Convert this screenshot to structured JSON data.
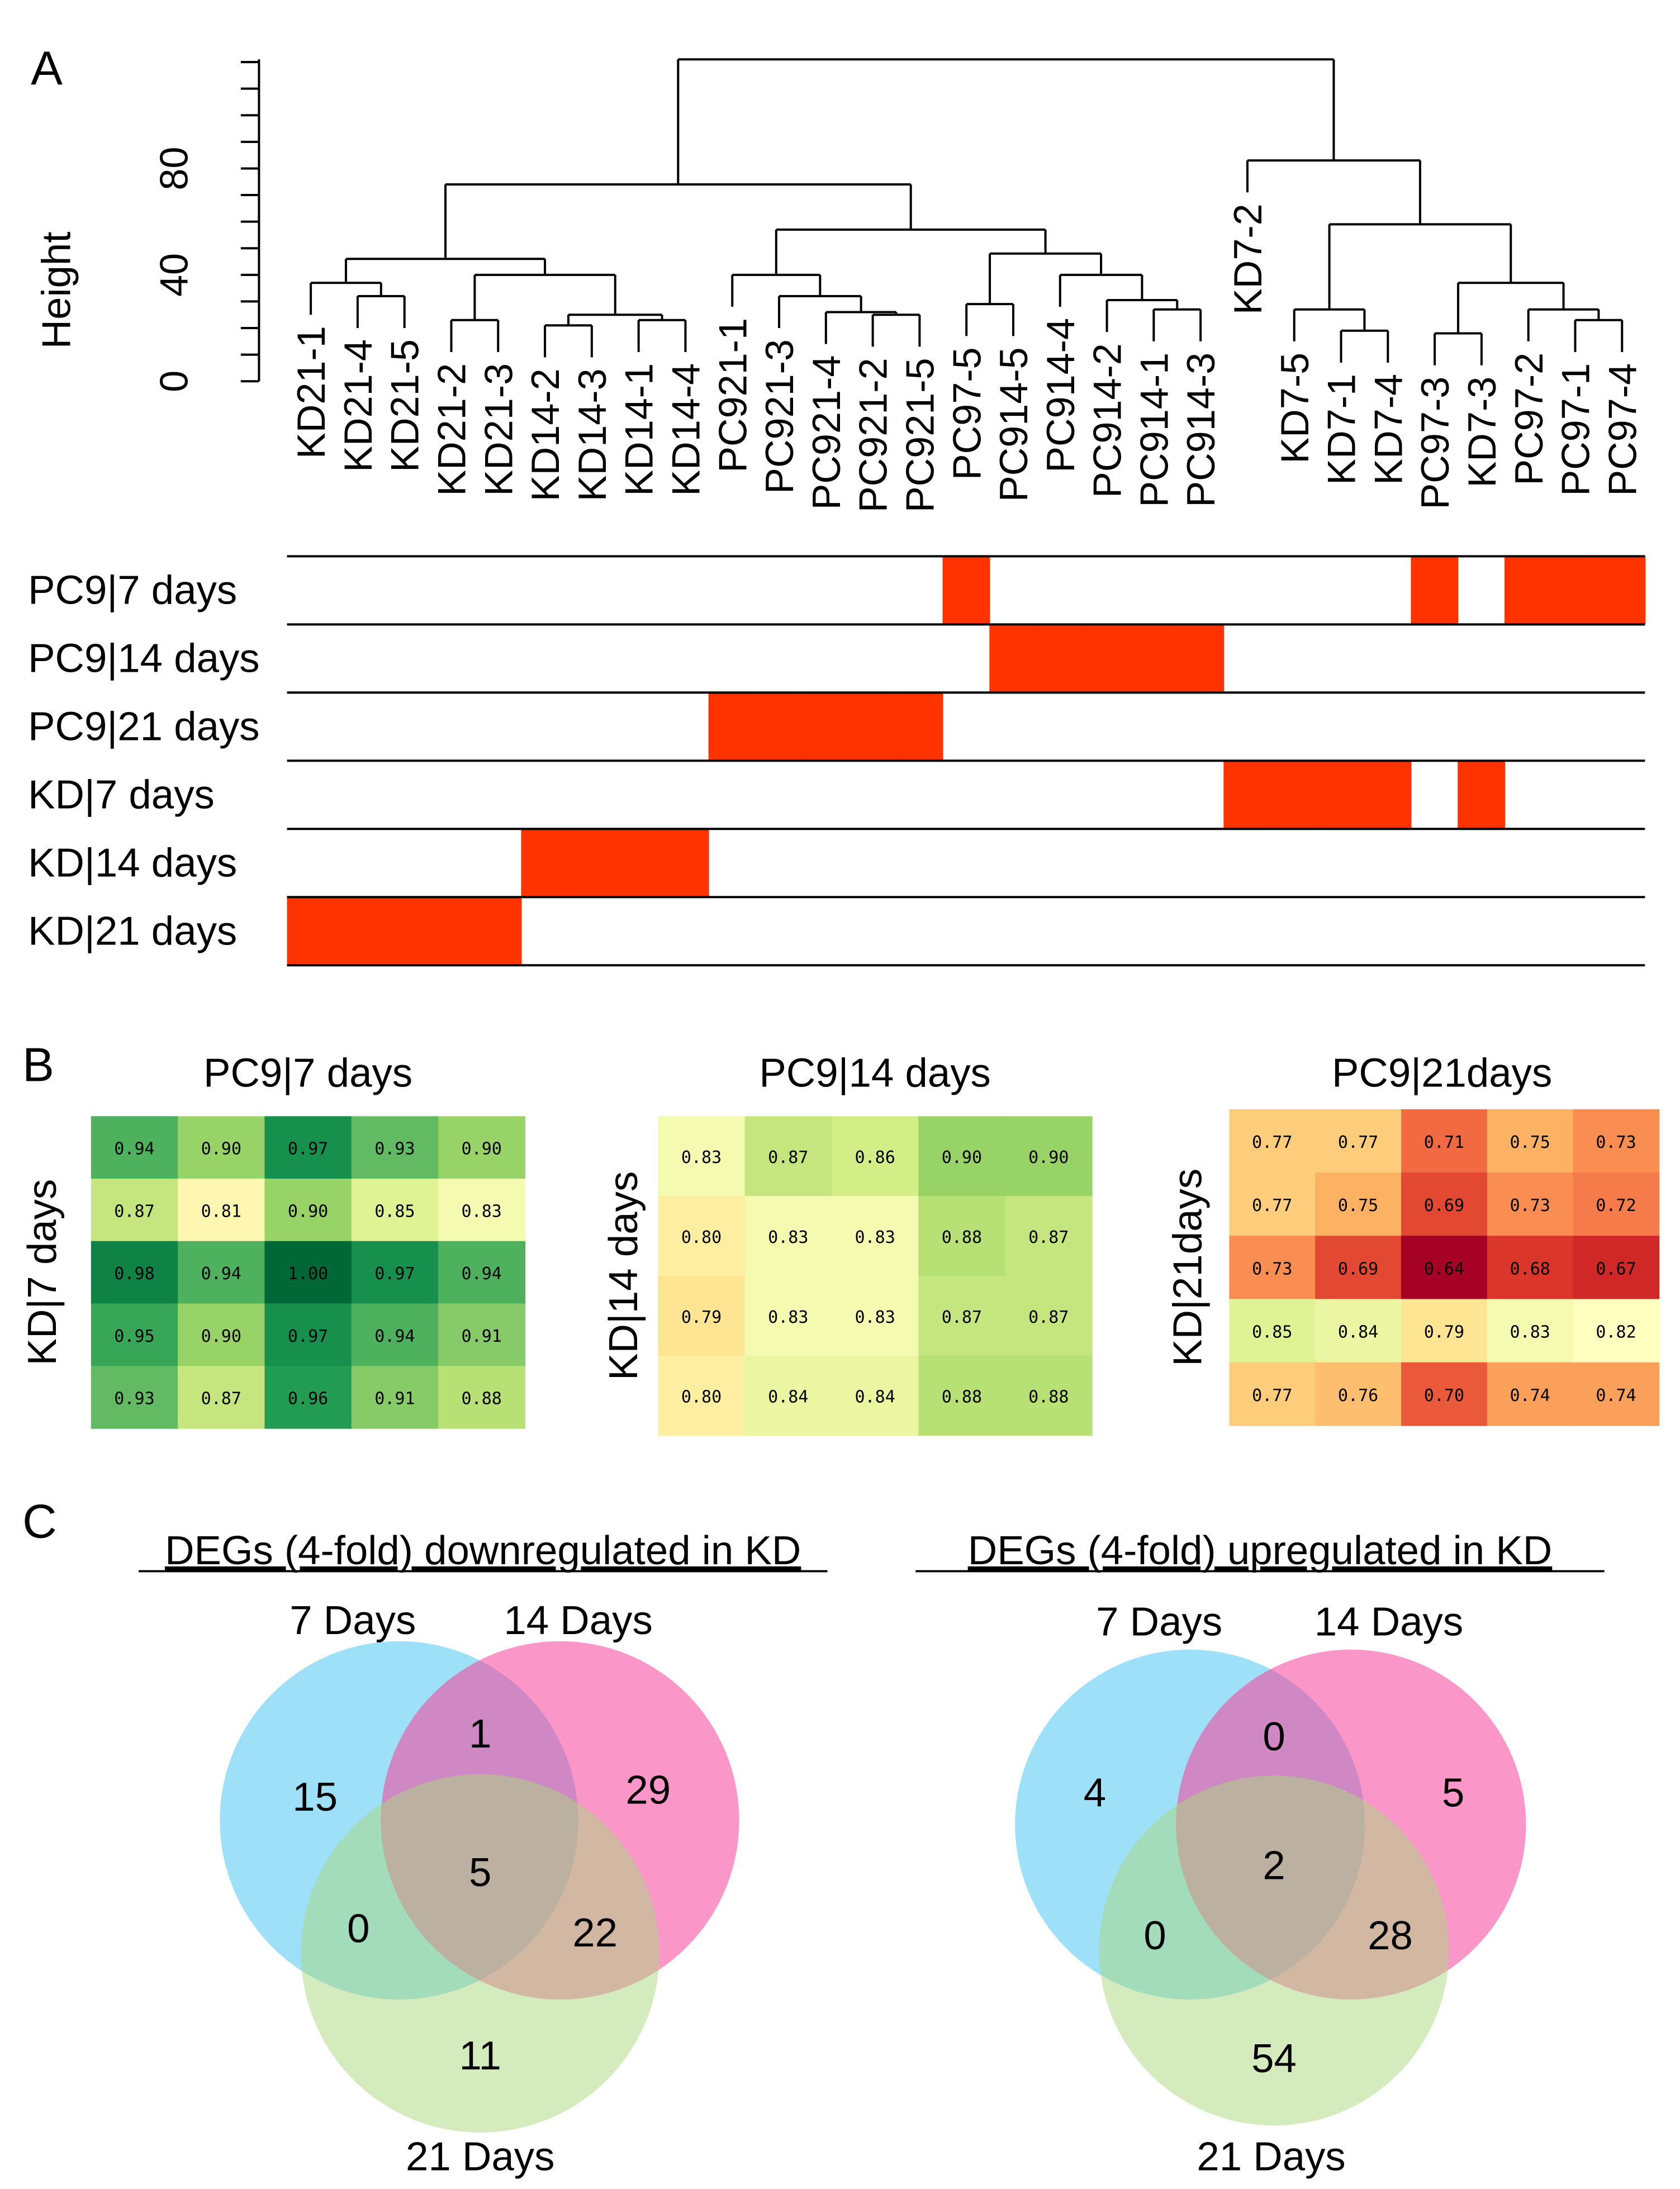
{
  "panels": {
    "a": "A",
    "b": "B",
    "c": "C"
  },
  "chart_data": [
    {
      "type": "dendrogram",
      "panel": "A",
      "ylabel": "Height",
      "yticks": [
        0,
        40,
        80
      ],
      "ylim": [
        0,
        121
      ],
      "leaves": [
        "KD21-1",
        "KD21-4",
        "KD21-5",
        "KD21-2",
        "KD21-3",
        "KD14-2",
        "KD14-3",
        "KD14-1",
        "KD14-4",
        "PC921-1",
        "PC921-3",
        "PC921-4",
        "PC921-2",
        "PC921-5",
        "PC97-5",
        "PC914-5",
        "PC914-4",
        "PC914-2",
        "PC914-1",
        "PC914-3",
        "KD7-2",
        "KD7-5",
        "KD7-1",
        "KD7-4",
        "PC97-3",
        "KD7-3",
        "PC97-2",
        "PC97-1",
        "PC97-4"
      ],
      "merges": [
        {
          "a": [
            1
          ],
          "b": [
            2
          ],
          "h": 32
        },
        {
          "a": [
            0
          ],
          "b": [
            1,
            2
          ],
          "h": 37
        },
        {
          "a": [
            3
          ],
          "b": [
            4
          ],
          "h": 23
        },
        {
          "a": [
            5
          ],
          "b": [
            6
          ],
          "h": 21
        },
        {
          "a": [
            7
          ],
          "b": [
            8
          ],
          "h": 23
        },
        {
          "a": [
            5,
            6
          ],
          "b": [
            7,
            8
          ],
          "h": 25
        },
        {
          "a": [
            3,
            4
          ],
          "b": [
            5,
            6,
            7,
            8
          ],
          "h": 40
        },
        {
          "a": [
            0,
            1,
            2
          ],
          "b": [
            3,
            4,
            5,
            6,
            7,
            8
          ],
          "h": 46
        },
        {
          "a": [
            12
          ],
          "b": [
            13
          ],
          "h": 25
        },
        {
          "a": [
            11
          ],
          "b": [
            12,
            13
          ],
          "h": 26
        },
        {
          "a": [
            10
          ],
          "b": [
            11,
            12,
            13
          ],
          "h": 32
        },
        {
          "a": [
            9
          ],
          "b": [
            10,
            11,
            12,
            13
          ],
          "h": 40
        },
        {
          "a": [
            14
          ],
          "b": [
            15
          ],
          "h": 29
        },
        {
          "a": [
            18
          ],
          "b": [
            19
          ],
          "h": 27
        },
        {
          "a": [
            17
          ],
          "b": [
            18,
            19
          ],
          "h": 30.5
        },
        {
          "a": [
            16
          ],
          "b": [
            17,
            18,
            19
          ],
          "h": 40
        },
        {
          "a": [
            14,
            15
          ],
          "b": [
            16,
            17,
            18,
            19
          ],
          "h": 48
        },
        {
          "a": [
            9,
            10,
            11,
            12,
            13
          ],
          "b": [
            14,
            15,
            16,
            17,
            18,
            19
          ],
          "h": 57
        },
        {
          "a": [
            0,
            1,
            2,
            3,
            4,
            5,
            6,
            7,
            8
          ],
          "b": [
            9,
            10,
            11,
            12,
            13,
            14,
            15,
            16,
            17,
            18,
            19
          ],
          "h": 74
        },
        {
          "a": [
            22
          ],
          "b": [
            23
          ],
          "h": 19
        },
        {
          "a": [
            21
          ],
          "b": [
            22,
            23
          ],
          "h": 27
        },
        {
          "a": [
            24
          ],
          "b": [
            25
          ],
          "h": 18
        },
        {
          "a": [
            27
          ],
          "b": [
            28
          ],
          "h": 23
        },
        {
          "a": [
            26
          ],
          "b": [
            27,
            28
          ],
          "h": 27
        },
        {
          "a": [
            24,
            25
          ],
          "b": [
            26,
            27,
            28
          ],
          "h": 37
        },
        {
          "a": [
            21,
            22,
            23
          ],
          "b": [
            24,
            25,
            26,
            27,
            28
          ],
          "h": 59
        },
        {
          "a": [
            20
          ],
          "b": [
            21,
            22,
            23,
            24,
            25,
            26,
            27,
            28
          ],
          "h": 83
        },
        {
          "a": [
            0,
            1,
            2,
            3,
            4,
            5,
            6,
            7,
            8,
            9,
            10,
            11,
            12,
            13,
            14,
            15,
            16,
            17,
            18,
            19
          ],
          "b": [
            20,
            21,
            22,
            23,
            24,
            25,
            26,
            27,
            28
          ],
          "h": 121
        }
      ],
      "annotation_rows": [
        {
          "label": "PC9|7 days",
          "members": [
            14,
            24,
            26,
            27,
            28
          ]
        },
        {
          "label": "PC9|14 days",
          "members": [
            15,
            16,
            17,
            18,
            19
          ]
        },
        {
          "label": "PC9|21 days",
          "members": [
            9,
            10,
            11,
            12,
            13
          ]
        },
        {
          "label": "KD|7 days",
          "members": [
            20,
            21,
            22,
            23,
            25
          ]
        },
        {
          "label": "KD|14 days",
          "members": [
            5,
            6,
            7,
            8
          ]
        },
        {
          "label": "KD|21 days",
          "members": [
            0,
            1,
            2,
            3,
            4
          ]
        }
      ],
      "annotation_color": "#ff3300"
    },
    {
      "type": "heatmap",
      "panel": "B",
      "title": "PC9|7 days",
      "ylabel": "KD|7 days",
      "values": [
        [
          0.94,
          0.9,
          0.97,
          0.93,
          0.9
        ],
        [
          0.87,
          0.81,
          0.9,
          0.85,
          0.83
        ],
        [
          0.98,
          0.94,
          1.0,
          0.97,
          0.94
        ],
        [
          0.95,
          0.9,
          0.97,
          0.94,
          0.91
        ],
        [
          0.93,
          0.87,
          0.96,
          0.91,
          0.88
        ]
      ]
    },
    {
      "type": "heatmap",
      "panel": "B",
      "title": "PC9|14 days",
      "ylabel": "KD|14 days",
      "values": [
        [
          0.83,
          0.87,
          0.86,
          0.9,
          0.9
        ],
        [
          0.8,
          0.83,
          0.83,
          0.88,
          0.87
        ],
        [
          0.79,
          0.83,
          0.83,
          0.87,
          0.87
        ],
        [
          0.8,
          0.84,
          0.84,
          0.88,
          0.88
        ]
      ]
    },
    {
      "type": "heatmap",
      "panel": "B",
      "title": "PC9|21days",
      "ylabel": "KD|21days",
      "values": [
        [
          0.77,
          0.77,
          0.71,
          0.75,
          0.73
        ],
        [
          0.77,
          0.75,
          0.69,
          0.73,
          0.72
        ],
        [
          0.73,
          0.69,
          0.64,
          0.68,
          0.67
        ],
        [
          0.85,
          0.84,
          0.79,
          0.83,
          0.82
        ],
        [
          0.77,
          0.76,
          0.7,
          0.74,
          0.74
        ]
      ]
    },
    {
      "type": "venn",
      "panel": "C",
      "title": "DEGs (4-fold) downregulated in KD",
      "sets": [
        "7 Days",
        "14 Days",
        "21 Days"
      ],
      "regions": {
        "only7": 15,
        "7_14": 1,
        "only14": 29,
        "all": 5,
        "7_21": 0,
        "14_21": 22,
        "only21": 11
      }
    },
    {
      "type": "venn",
      "panel": "C",
      "title": "DEGs (4-fold) upregulated in KD",
      "sets": [
        "7 Days",
        "14 Days",
        "21 Days"
      ],
      "regions": {
        "only7": 4,
        "7_14": 0,
        "only14": 5,
        "all": 2,
        "7_21": 0,
        "14_21": 28,
        "only21": 54
      }
    }
  ],
  "colors": {
    "set7": "#5ccbf2",
    "set14": "#f7409a",
    "set21": "#a9d77e"
  }
}
